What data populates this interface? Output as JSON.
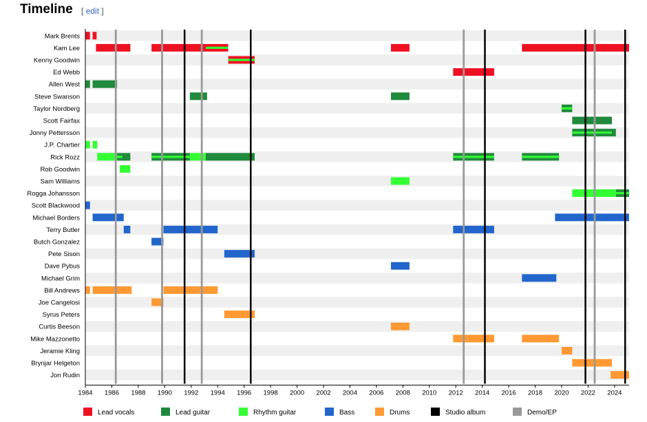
{
  "section": {
    "title": "Timeline",
    "edit_open": "[",
    "edit_label": "edit",
    "edit_close": "]"
  },
  "chart_data": {
    "type": "timeline",
    "title": "Timeline",
    "xlabel": "",
    "ylabel": "",
    "xlim": [
      1984,
      2025.1
    ],
    "tick_labels": [
      "1984",
      "1986",
      "1988",
      "1990",
      "1992",
      "1994",
      "1996",
      "1998",
      "2000",
      "2002",
      "2004",
      "2006",
      "2008",
      "2010",
      "2012",
      "2014",
      "2016",
      "2018",
      "2020",
      "2022",
      "2024"
    ],
    "roles": {
      "lead_vocals": {
        "label": "Lead vocals",
        "color": "#ee1122"
      },
      "lead_guitar": {
        "label": "Lead guitar",
        "color": "#1f8a3c"
      },
      "rhythm_guitar": {
        "label": "Rhythm guitar",
        "color": "#33ff33"
      },
      "bass": {
        "label": "Bass",
        "color": "#2266cc"
      },
      "drums": {
        "label": "Drums",
        "color": "#ff9933"
      },
      "studio_album": {
        "label": "Studio album",
        "color": "#000000"
      },
      "demo_ep": {
        "label": "Demo/EP",
        "color": "#999999"
      }
    },
    "legend_order": [
      "lead_vocals",
      "lead_guitar",
      "rhythm_guitar",
      "bass",
      "drums",
      "studio_album",
      "demo_ep"
    ],
    "members": [
      {
        "name": "Mark Brents",
        "bars": [
          {
            "role": "lead_vocals",
            "start": 1984.0,
            "end": 1984.35
          },
          {
            "role": "lead_vocals",
            "start": 1984.55,
            "end": 1984.85
          }
        ]
      },
      {
        "name": "Kam Lee",
        "bars": [
          {
            "role": "lead_vocals",
            "start": 1984.8,
            "end": 1987.4
          },
          {
            "role": "lead_vocals",
            "start": 1989.0,
            "end": 1994.8
          },
          {
            "role": "lead_vocals",
            "start": 2007.1,
            "end": 2008.5
          },
          {
            "role": "lead_vocals",
            "start": 2017.0,
            "end": 2025.1
          }
        ],
        "overlays": [
          {
            "role": "rhythm_guitar",
            "start": 1993.1,
            "end": 1994.8
          }
        ]
      },
      {
        "name": "Kenny Goodwin",
        "bars": [
          {
            "role": "lead_vocals",
            "start": 1994.8,
            "end": 1996.8
          }
        ],
        "overlays": [
          {
            "role": "rhythm_guitar",
            "start": 1994.8,
            "end": 1996.8
          }
        ]
      },
      {
        "name": "Ed Webb",
        "bars": [
          {
            "role": "lead_vocals",
            "start": 2011.8,
            "end": 2014.9
          }
        ]
      },
      {
        "name": "Allen West",
        "bars": [
          {
            "role": "lead_guitar",
            "start": 1984.0,
            "end": 1984.35
          },
          {
            "role": "lead_guitar",
            "start": 1984.55,
            "end": 1986.4
          }
        ]
      },
      {
        "name": "Steve Swanson",
        "bars": [
          {
            "role": "lead_guitar",
            "start": 1991.9,
            "end": 1993.2
          },
          {
            "role": "lead_guitar",
            "start": 2007.1,
            "end": 2008.5
          }
        ]
      },
      {
        "name": "Taylor Nordberg",
        "bars": [
          {
            "role": "lead_guitar",
            "start": 2020.0,
            "end": 2020.8
          }
        ],
        "overlays": [
          {
            "role": "rhythm_guitar",
            "start": 2020.0,
            "end": 2020.8
          }
        ]
      },
      {
        "name": "Scott Fairfax",
        "bars": [
          {
            "role": "lead_guitar",
            "start": 2020.8,
            "end": 2023.8
          }
        ]
      },
      {
        "name": "Jonny Pettersson",
        "bars": [
          {
            "role": "lead_guitar",
            "start": 2020.8,
            "end": 2024.1
          }
        ],
        "overlays": [
          {
            "role": "rhythm_guitar",
            "start": 2020.8,
            "end": 2023.8
          }
        ]
      },
      {
        "name": "J.P. Chartier",
        "bars": [
          {
            "role": "rhythm_guitar",
            "start": 1984.0,
            "end": 1984.35
          },
          {
            "role": "rhythm_guitar",
            "start": 1984.55,
            "end": 1984.9
          }
        ]
      },
      {
        "name": "Rick Rozz",
        "bars": [
          {
            "role": "rhythm_guitar",
            "start": 1984.9,
            "end": 1986.4
          },
          {
            "role": "lead_guitar",
            "start": 1986.4,
            "end": 1987.4
          },
          {
            "role": "lead_guitar",
            "start": 1989.0,
            "end": 1991.9
          },
          {
            "role": "rhythm_guitar",
            "start": 1991.9,
            "end": 1993.1
          },
          {
            "role": "lead_guitar",
            "start": 1993.1,
            "end": 1996.8
          },
          {
            "role": "lead_guitar",
            "start": 2011.8,
            "end": 2014.9
          },
          {
            "role": "lead_guitar",
            "start": 2017.0,
            "end": 2019.8
          }
        ],
        "overlays": [
          {
            "role": "rhythm_guitar",
            "start": 1986.4,
            "end": 1986.8
          },
          {
            "role": "rhythm_guitar",
            "start": 1989.0,
            "end": 1991.9
          },
          {
            "role": "rhythm_guitar",
            "start": 2011.8,
            "end": 2014.9
          },
          {
            "role": "rhythm_guitar",
            "start": 2017.0,
            "end": 2019.8
          }
        ]
      },
      {
        "name": "Rob Goodwin",
        "bars": [
          {
            "role": "rhythm_guitar",
            "start": 1986.6,
            "end": 1987.4
          }
        ]
      },
      {
        "name": "Sam Williams",
        "bars": [
          {
            "role": "rhythm_guitar",
            "start": 2007.1,
            "end": 2008.5
          }
        ]
      },
      {
        "name": "Rogga Johansson",
        "bars": [
          {
            "role": "rhythm_guitar",
            "start": 2020.8,
            "end": 2024.1
          },
          {
            "role": "lead_guitar",
            "start": 2024.1,
            "end": 2025.1
          }
        ],
        "overlays": [
          {
            "role": "rhythm_guitar",
            "start": 2024.1,
            "end": 2025.1
          }
        ]
      },
      {
        "name": "Scott Blackwood",
        "bars": [
          {
            "role": "bass",
            "start": 1984.0,
            "end": 1984.35
          }
        ]
      },
      {
        "name": "Michael Borders",
        "bars": [
          {
            "role": "bass",
            "start": 1984.55,
            "end": 1986.9
          },
          {
            "role": "bass",
            "start": 2019.5,
            "end": 2025.1
          }
        ]
      },
      {
        "name": "Terry Butler",
        "bars": [
          {
            "role": "bass",
            "start": 1986.9,
            "end": 1987.4
          },
          {
            "role": "bass",
            "start": 1989.9,
            "end": 1994.0
          },
          {
            "role": "bass",
            "start": 2011.8,
            "end": 2014.9
          }
        ]
      },
      {
        "name": "Butch Gonzalez",
        "bars": [
          {
            "role": "bass",
            "start": 1989.0,
            "end": 1989.9
          }
        ]
      },
      {
        "name": "Pete Sison",
        "bars": [
          {
            "role": "bass",
            "start": 1994.5,
            "end": 1996.8
          }
        ]
      },
      {
        "name": "Dave Pybus",
        "bars": [
          {
            "role": "bass",
            "start": 2007.1,
            "end": 2008.5
          }
        ]
      },
      {
        "name": "Michael Grim",
        "bars": [
          {
            "role": "bass",
            "start": 2017.0,
            "end": 2019.6
          }
        ]
      },
      {
        "name": "Bill Andrews",
        "bars": [
          {
            "role": "drums",
            "start": 1984.0,
            "end": 1984.35
          },
          {
            "role": "drums",
            "start": 1984.55,
            "end": 1987.5
          },
          {
            "role": "drums",
            "start": 1989.9,
            "end": 1994.0
          }
        ]
      },
      {
        "name": "Joe Cangelosi",
        "bars": [
          {
            "role": "drums",
            "start": 1989.0,
            "end": 1989.9
          }
        ]
      },
      {
        "name": "Syrus Peters",
        "bars": [
          {
            "role": "drums",
            "start": 1994.5,
            "end": 1996.8
          }
        ]
      },
      {
        "name": "Curtis Beeson",
        "bars": [
          {
            "role": "drums",
            "start": 2007.1,
            "end": 2008.5
          }
        ]
      },
      {
        "name": "Mike Mazzonetto",
        "bars": [
          {
            "role": "drums",
            "start": 2011.8,
            "end": 2014.9
          },
          {
            "role": "drums",
            "start": 2017.0,
            "end": 2019.8
          }
        ]
      },
      {
        "name": "Jeramie Kling",
        "bars": [
          {
            "role": "drums",
            "start": 2020.0,
            "end": 2020.8
          }
        ]
      },
      {
        "name": "Brynjar Helgeton",
        "bars": [
          {
            "role": "drums",
            "start": 2020.8,
            "end": 2023.8
          }
        ]
      },
      {
        "name": "Jon Rudin",
        "bars": [
          {
            "role": "drums",
            "start": 2023.7,
            "end": 2025.1
          }
        ]
      }
    ],
    "events": [
      {
        "type": "demo_ep",
        "year": 1986.3
      },
      {
        "type": "demo_ep",
        "year": 1989.8
      },
      {
        "type": "studio_album",
        "year": 1991.5
      },
      {
        "type": "demo_ep",
        "year": 1992.8
      },
      {
        "type": "studio_album",
        "year": 1996.5
      },
      {
        "type": "demo_ep",
        "year": 2012.6
      },
      {
        "type": "studio_album",
        "year": 2014.2
      },
      {
        "type": "studio_album",
        "year": 2021.8
      },
      {
        "type": "demo_ep",
        "year": 2022.5
      },
      {
        "type": "studio_album",
        "year": 2024.8
      }
    ]
  }
}
